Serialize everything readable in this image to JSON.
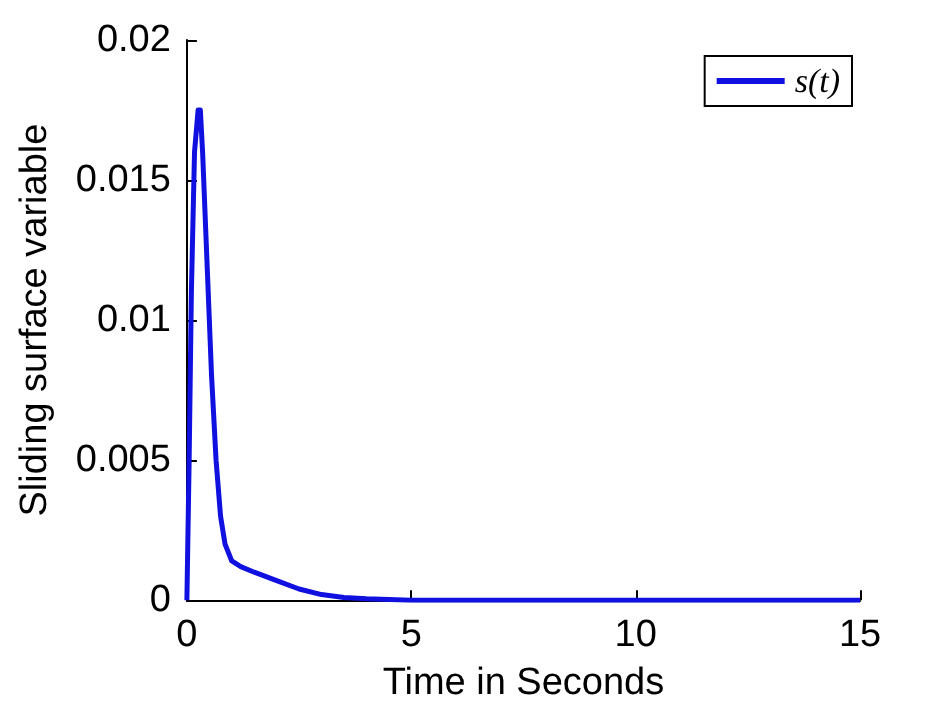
{
  "chart_data": {
    "type": "line",
    "xlabel": "Time in Seconds",
    "ylabel": "Sliding surface variable",
    "xlim": [
      0,
      15
    ],
    "xticks": [
      0,
      5,
      10,
      15
    ],
    "ylim": [
      0,
      0.02
    ],
    "yticks": [
      0,
      0.005,
      0.01,
      0.015,
      0.02
    ],
    "grid": false,
    "legend": "top right",
    "marker": "none",
    "line_style": "solid",
    "series": [
      {
        "name": "s(t)",
        "color": "#1010e0",
        "x": [
          0,
          0.05,
          0.1,
          0.17,
          0.25,
          0.3,
          0.35,
          0.45,
          0.55,
          0.65,
          0.75,
          0.85,
          1.0,
          1.2,
          1.5,
          2,
          2.5,
          3,
          3.5,
          4,
          5,
          15
        ],
        "values": [
          0,
          0.005,
          0.011,
          0.016,
          0.0175,
          0.0175,
          0.016,
          0.012,
          0.008,
          0.005,
          0.003,
          0.002,
          0.0014,
          0.0012,
          0.001,
          0.0007,
          0.0004,
          0.0002,
          0.0001,
          5e-05,
          0,
          0
        ]
      }
    ]
  }
}
